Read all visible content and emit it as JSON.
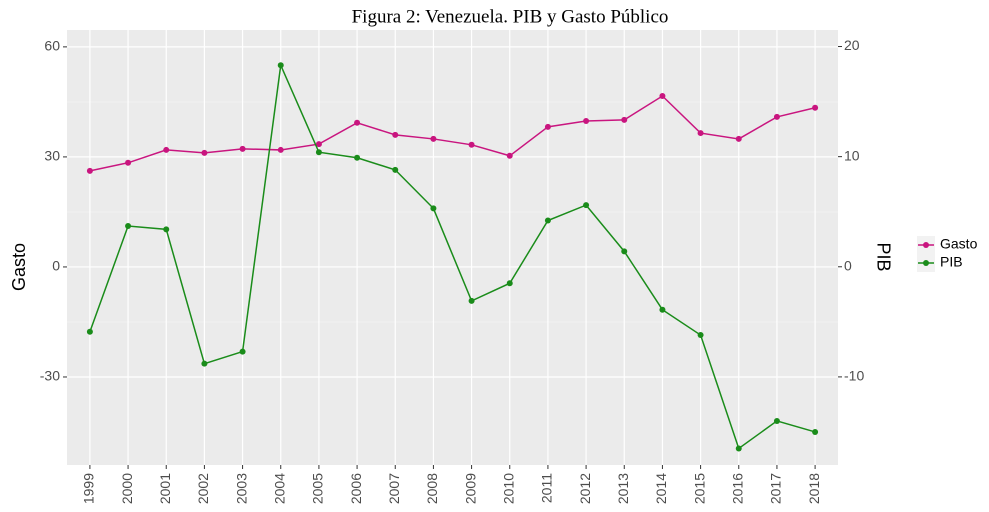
{
  "chart_data": {
    "type": "line",
    "title": "Figura 2: Venezuela. PIB y Gasto Público",
    "y_label": "Gasto",
    "y2_label": "PIB",
    "categories": [
      "1999",
      "2000",
      "2001",
      "2002",
      "2003",
      "2004",
      "2005",
      "2006",
      "2007",
      "2008",
      "2009",
      "2010",
      "2011",
      "2012",
      "2013",
      "2014",
      "2015",
      "2016",
      "2017",
      "2018"
    ],
    "series": [
      {
        "name": "Gasto",
        "color": "#c9157f",
        "values": [
          26.2,
          28.4,
          31.9,
          31.1,
          32.2,
          31.9,
          33.5,
          39.3,
          36.0,
          34.9,
          33.3,
          30.3,
          38.2,
          39.8,
          40.1,
          46.6,
          36.5,
          34.9,
          40.9,
          43.4
        ]
      },
      {
        "name": "PIB",
        "color": "#1a8c1a",
        "axis": "y2",
        "values": [
          -5.9,
          3.7,
          3.4,
          -8.8,
          -7.7,
          18.3,
          10.4,
          9.9,
          8.8,
          5.3,
          -3.1,
          -1.5,
          4.2,
          5.6,
          1.4,
          -3.9,
          -6.2,
          -16.5,
          -14.0,
          -15.0
        ]
      }
    ],
    "ylim": [
      -54,
      64.6
    ],
    "yticks": [
      -30,
      0,
      30,
      60
    ],
    "y2lim": [
      -18,
      21.5
    ],
    "y2ticks": [
      -10,
      0,
      10,
      20
    ],
    "grid": true,
    "legend": "right"
  }
}
